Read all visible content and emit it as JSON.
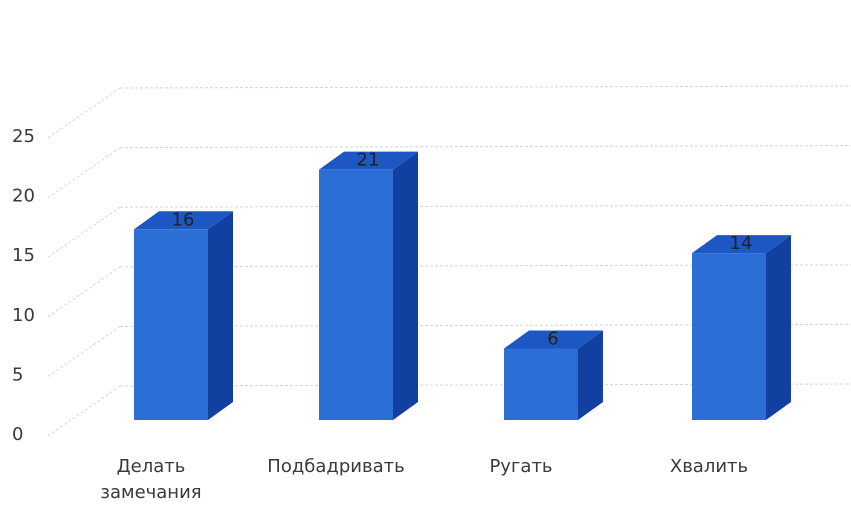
{
  "chart_data": {
    "type": "bar",
    "style": "3d-column",
    "categories": [
      "Делать замечания",
      "Подбадривать",
      "Ругать",
      "Хвалить"
    ],
    "category_lines": [
      [
        "Делать",
        "замечания"
      ],
      [
        "Подбадривать"
      ],
      [
        "Ругать"
      ],
      [
        "Хвалить"
      ]
    ],
    "values": [
      16,
      21,
      6,
      14
    ],
    "data_labels": [
      "16",
      "21",
      "6",
      "14"
    ],
    "yticks": [
      "0",
      "5",
      "10",
      "15",
      "20",
      "25"
    ],
    "ylim": [
      0,
      25
    ],
    "grid": true,
    "legend": "none",
    "colors": {
      "front": "#2b6fd6",
      "top": "#1c57c4",
      "side": "#1240a0",
      "grid": "#d4d4d4"
    }
  }
}
